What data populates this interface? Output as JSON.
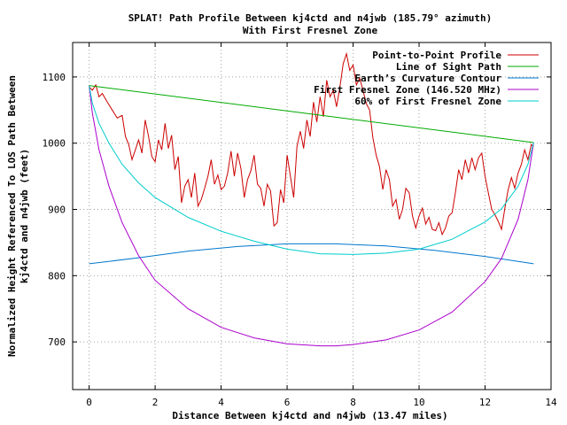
{
  "chart_data": {
    "type": "line",
    "title": "SPLAT! Path Profile Between kj4ctd and n4jwb (185.79° azimuth)",
    "subtitle": "With First Fresnel Zone",
    "xlabel": "Distance Between kj4ctd and n4jwb (13.47 miles)",
    "ylabel_lines": [
      "Normalized Height Referenced To LOS Path Between",
      "kj4ctd and n4jwb (feet)"
    ],
    "xlim": [
      -0.5,
      14
    ],
    "ylim": [
      628,
      1152
    ],
    "x_ticks": [
      0,
      2,
      4,
      6,
      8,
      10,
      12,
      14
    ],
    "x_tick_labels": [
      "0",
      "2",
      "4",
      "6",
      "8",
      "10",
      "12",
      "14"
    ],
    "y_ticks": [
      700,
      800,
      900,
      1000,
      1100
    ],
    "y_tick_labels": [
      "700",
      "800",
      "900",
      "1000",
      "1100"
    ],
    "grid": true,
    "legend_position": "top-right",
    "series": [
      {
        "name": "Point-to-Point Profile",
        "color": "#cc0000",
        "x": [
          0,
          0.1,
          0.2,
          0.3,
          0.4,
          0.55,
          0.7,
          0.85,
          1.0,
          1.1,
          1.2,
          1.3,
          1.4,
          1.5,
          1.6,
          1.7,
          1.8,
          1.9,
          2.0,
          2.1,
          2.2,
          2.3,
          2.4,
          2.5,
          2.6,
          2.7,
          2.8,
          2.9,
          3.0,
          3.1,
          3.2,
          3.3,
          3.4,
          3.5,
          3.6,
          3.7,
          3.8,
          3.9,
          4.0,
          4.1,
          4.2,
          4.3,
          4.4,
          4.5,
          4.6,
          4.7,
          4.8,
          4.9,
          5.0,
          5.1,
          5.2,
          5.3,
          5.4,
          5.5,
          5.6,
          5.7,
          5.8,
          5.9,
          6.0,
          6.1,
          6.2,
          6.3,
          6.4,
          6.5,
          6.6,
          6.7,
          6.8,
          6.9,
          7.0,
          7.1,
          7.2,
          7.3,
          7.4,
          7.5,
          7.6,
          7.7,
          7.8,
          7.9,
          8.0,
          8.1,
          8.2,
          8.3,
          8.4,
          8.5,
          8.6,
          8.7,
          8.8,
          8.9,
          9.0,
          9.1,
          9.2,
          9.3,
          9.4,
          9.5,
          9.6,
          9.7,
          9.8,
          9.9,
          10.0,
          10.1,
          10.2,
          10.3,
          10.4,
          10.5,
          10.6,
          10.7,
          10.8,
          10.9,
          11.0,
          11.1,
          11.2,
          11.3,
          11.4,
          11.5,
          11.6,
          11.7,
          11.8,
          11.9,
          12.0,
          12.1,
          12.2,
          12.3,
          12.4,
          12.5,
          12.6,
          12.7,
          12.8,
          12.9,
          13.0,
          13.1,
          13.2,
          13.3,
          13.4,
          13.47
        ],
        "y": [
          1085,
          1080,
          1088,
          1070,
          1075,
          1062,
          1050,
          1038,
          1042,
          1010,
          998,
          975,
          990,
          1005,
          985,
          1035,
          1010,
          980,
          972,
          1005,
          990,
          1030,
          992,
          1012,
          960,
          980,
          910,
          935,
          945,
          918,
          955,
          905,
          915,
          932,
          950,
          975,
          938,
          952,
          930,
          935,
          955,
          988,
          950,
          985,
          962,
          918,
          945,
          958,
          982,
          938,
          932,
          905,
          938,
          928,
          875,
          880,
          930,
          910,
          982,
          950,
          918,
          995,
          1018,
          992,
          1035,
          1010,
          1062,
          1032,
          1070,
          1040,
          1095,
          1070,
          1080,
          1055,
          1085,
          1120,
          1135,
          1110,
          1118,
          1088,
          1098,
          1080,
          1060,
          1050,
          1008,
          982,
          965,
          930,
          960,
          945,
          905,
          915,
          885,
          900,
          932,
          925,
          890,
          872,
          890,
          902,
          878,
          888,
          870,
          868,
          880,
          862,
          872,
          890,
          895,
          925,
          960,
          945,
          975,
          955,
          978,
          960,
          978,
          985,
          950,
          925,
          900,
          892,
          882,
          870,
          902,
          930,
          948,
          932,
          955,
          968,
          990,
          975,
          998,
          995
        ]
      },
      {
        "name": "Line of Sight Path",
        "color": "#00aa00",
        "x": [
          0,
          13.47
        ],
        "y": [
          1087,
          1001
        ]
      },
      {
        "name": "Earth’s Curvature Contour",
        "color": "#0077cc",
        "x": [
          0,
          1.5,
          3,
          4.5,
          6,
          7.5,
          9,
          10.5,
          12,
          13.47
        ],
        "y": [
          818,
          827,
          837,
          844,
          848,
          848,
          845,
          838,
          829,
          818
        ]
      },
      {
        "name": "First Fresnel Zone (146.520 MHz)",
        "color": "#aa00cc",
        "x": [
          0,
          0.1,
          0.3,
          0.6,
          1.0,
          1.5,
          2.0,
          3.0,
          4.0,
          5.0,
          6.0,
          7.0,
          7.5,
          8.0,
          9.0,
          10.0,
          11.0,
          12.0,
          12.5,
          13.0,
          13.3,
          13.47
        ],
        "y": [
          1087,
          1045,
          990,
          935,
          880,
          830,
          793,
          750,
          722,
          706,
          697,
          694,
          694,
          696,
          703,
          718,
          745,
          791,
          826,
          885,
          945,
          1001
        ]
      },
      {
        "name": "60% of First Fresnel Zone",
        "color": "#00cccc",
        "x": [
          0,
          0.1,
          0.3,
          0.6,
          1.0,
          1.5,
          2.0,
          3.0,
          4.0,
          5.0,
          6.0,
          7.0,
          8.0,
          9.0,
          10.0,
          11.0,
          12.0,
          12.5,
          13.0,
          13.3,
          13.47
        ],
        "y": [
          1087,
          1060,
          1030,
          1000,
          968,
          940,
          918,
          888,
          867,
          852,
          840,
          833,
          832,
          834,
          840,
          855,
          881,
          901,
          935,
          968,
          1001
        ]
      }
    ]
  }
}
